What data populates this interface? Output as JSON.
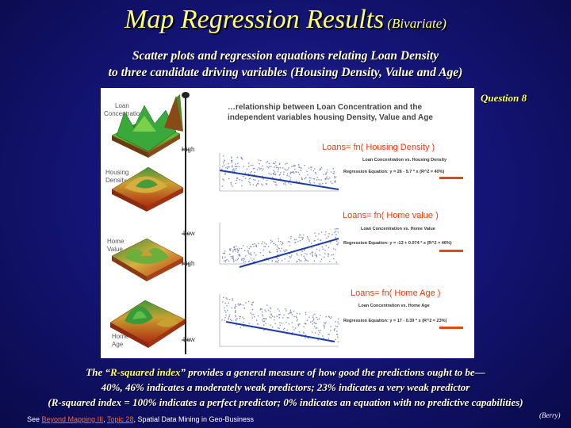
{
  "title": {
    "main": "Map Regression Results",
    "sub": "(Bivariate)"
  },
  "subtitle": {
    "line1": "Scatter plots and regression equations relating Loan Density",
    "line2": "to three candidate driving variables (Housing Density, Value and Age)"
  },
  "question": "Question 8",
  "panel": {
    "header_line1": "…relationship between Loan Concentration and the",
    "header_line2": "independent variables housing Density, Value and Age",
    "map_labels": {
      "loan_line1": "Loan",
      "loan_line2": "Concentration",
      "housing_line1": "Housing",
      "housing_line2": "Density",
      "value_line1": "Home",
      "value_line2": "Value",
      "age_line1": "Home",
      "age_line2": "Age"
    },
    "scale": {
      "high1": "High",
      "low1": "Low",
      "high2": "High",
      "low2": "Low"
    },
    "plots": [
      {
        "formula": "Loans= fn( Housing Density )",
        "chart_title": "Loan Concentration vs. Housing Density",
        "equation": "Regression Equation: y = 26 - 5.7 * x (R^2 = 40%)"
      },
      {
        "formula": "Loans= fn( Home value )",
        "chart_title": "Loan Concentration vs. Home Value",
        "equation": "Regression Equation: y = -13 + 0.074 * x (R^2 = 46%)"
      },
      {
        "formula": "Loans= fn( Home Age )",
        "chart_title": "Loan Concentration vs. Home Age",
        "equation": "Regression Equation: y = 17 - 0.39 * x (R^2 = 23%)"
      }
    ]
  },
  "footer": {
    "line1_pre": "The “",
    "line1_highlight": "R-squared index",
    "line1_post": "” provides a general measure of how good the predictions ought to be—",
    "line2": "40%, 46% indicates a moderately weak predictors; 23% indicates a very weak predictor",
    "line3": "(R-squared index = 100% indicates a perfect predictor; 0% indicates an equation with no predictive capabilities)"
  },
  "see": {
    "prefix": "See ",
    "link1": "Beyond Mapping III",
    "sep": ", ",
    "link2": "Topic 28",
    "suffix": ", Spatial Data Mining in Geo-Business"
  },
  "credit": "(Berry)",
  "colors": {
    "title": "#ffff66",
    "formula_text": "#ff3300",
    "regression_line": "#1a3ab0",
    "accent_bar": "#e04a10",
    "surface_high": "#2fa82f",
    "surface_low": "#b03a1a"
  }
}
